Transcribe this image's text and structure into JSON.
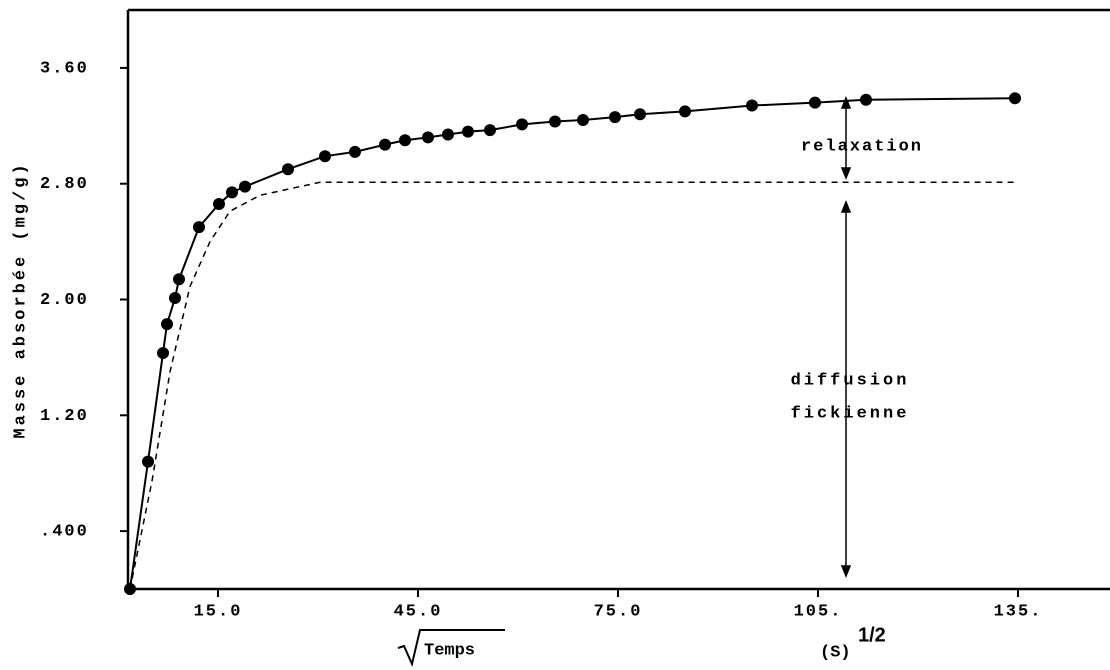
{
  "chart_data": {
    "type": "line",
    "y_label": "Masse absorbée (mg/g)",
    "x_label": "Temps",
    "x_unit": "(S)",
    "x_unit_exponent": "1/2",
    "annotations": [
      "relaxation",
      "diffusion",
      "fickienne"
    ],
    "xlim": [
      1.5,
      148.5
    ],
    "ylim": [
      0,
      4.0
    ],
    "xticks": [
      {
        "value": 15,
        "label": "15.0"
      },
      {
        "value": 45,
        "label": "45.0"
      },
      {
        "value": 75,
        "label": "75.0"
      },
      {
        "value": 105,
        "label": "105."
      },
      {
        "value": 135,
        "label": "135."
      }
    ],
    "yticks": [
      {
        "value": 0.4,
        "label": ".400"
      },
      {
        "value": 1.2,
        "label": "1.20"
      },
      {
        "value": 2.0,
        "label": "2.00"
      },
      {
        "value": 2.8,
        "label": "2.80"
      },
      {
        "value": 3.6,
        "label": "3.60"
      }
    ],
    "series": [
      {
        "color": "#000000",
        "dash": false,
        "markers": true,
        "x": [
          1.8,
          4.5,
          6.75,
          7.35,
          8.55,
          9.15,
          12.15,
          15.15,
          17.1,
          19.05,
          25.5,
          31.05,
          35.55,
          40.05,
          43.05,
          46.5,
          49.5,
          52.5,
          55.8,
          60.6,
          65.55,
          69.75,
          74.55,
          78.3,
          85.05,
          95.1,
          104.55,
          112.2,
          134.55
        ],
        "values": [
          0,
          0.88,
          1.63,
          1.83,
          2.01,
          2.14,
          2.5,
          2.66,
          2.74,
          2.78,
          2.9,
          2.99,
          3.02,
          3.07,
          3.1,
          3.12,
          3.14,
          3.16,
          3.17,
          3.21,
          3.23,
          3.24,
          3.26,
          3.28,
          3.3,
          3.34,
          3.36,
          3.38,
          3.39
        ]
      },
      {
        "color": "#000000",
        "dash": true,
        "markers": false,
        "x": [
          1.8,
          5.1,
          7.8,
          10.8,
          13.8,
          16.8,
          21.3,
          30.3,
          134.55
        ],
        "values": [
          0,
          0.745,
          1.5,
          2.09,
          2.4,
          2.61,
          2.72,
          2.81,
          2.81
        ]
      }
    ]
  }
}
